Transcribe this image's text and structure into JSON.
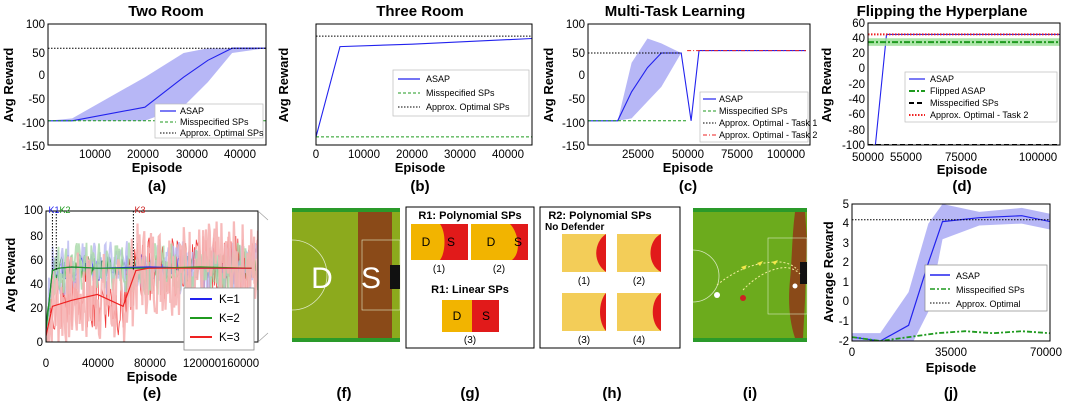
{
  "colors": {
    "blue": "#2222ee",
    "blue_fill": "#aaaaf5",
    "green": "#1f9a1f",
    "red": "#ee2222",
    "red_fill": "#f6b3b3",
    "black": "#000000",
    "pitch_green": "#8caa1d",
    "defender_brown": "#8a4a18",
    "shooter_yellow": "#f0c53a",
    "region_red": "#e11a1a",
    "region_orange": "#f2b400"
  },
  "subplots": {
    "a": {
      "title": "Two Room",
      "caption": "(a)",
      "xlabel": "Episode",
      "ylabel": "Avg Reward",
      "x_ticks": [
        "10000",
        "20000",
        "30000",
        "40000"
      ],
      "y_ticks": [
        "-150",
        "-100",
        "-50",
        "0",
        "50",
        "100"
      ],
      "legend": [
        "ASAP",
        "Misspecified SPs",
        "Approx. Optimal SPs"
      ]
    },
    "b": {
      "title": "Three Room",
      "caption": "(b)",
      "xlabel": "Episode",
      "ylabel": "Avg Reward",
      "x_ticks": [
        "0",
        "10000",
        "20000",
        "30000",
        "40000"
      ],
      "legend": [
        "ASAP",
        "Misspecified SPs",
        "Approx. Optimal SPs"
      ]
    },
    "c": {
      "title": "Multi-Task Learning",
      "caption": "(c)",
      "xlabel": "Episode",
      "ylabel": "Avg Reward",
      "x_ticks": [
        "25000",
        "50000",
        "75000",
        "100000"
      ],
      "y_ticks": [
        "-150",
        "-100",
        "-50",
        "0",
        "50",
        "100"
      ],
      "legend": [
        "ASAP",
        "Misspecified SPs",
        "Approx. Optimal - Task 1",
        "Approx. Optimal - Task 2"
      ]
    },
    "d": {
      "title": "Flipping the Hyperplane",
      "caption": "(d)",
      "xlabel": "Episode",
      "ylabel": "Avg Reward",
      "x_ticks": [
        "50000",
        "55000",
        "75000",
        "100000"
      ],
      "y_ticks": [
        "-100",
        "-80",
        "-60",
        "-40",
        "-20",
        "0",
        "20",
        "40",
        "60"
      ],
      "legend": [
        "ASAP",
        "Flipped ASAP",
        "Misspecified SPs",
        "Approx. Optimal - Task 2"
      ]
    },
    "e": {
      "caption": "(e)",
      "xlabel": "Episode",
      "ylabel": "Avg Reward",
      "x_ticks": [
        "0",
        "40000",
        "80000",
        "120000",
        "160000"
      ],
      "y_ticks": [
        "0",
        "20",
        "40",
        "60",
        "80",
        "100"
      ],
      "markers": [
        "K1",
        "K2",
        "K3"
      ],
      "legend": [
        "K=1",
        "K=2",
        "K=3"
      ]
    },
    "f": {
      "caption": "(f)",
      "defender_label": "D",
      "shooter_label": "S"
    },
    "g": {
      "caption": "(g)",
      "heading_poly": "R1: Polynomial SPs",
      "heading_lin": "R1: Linear SPs",
      "panel_labels": [
        "(1)",
        "(2)",
        "(3)"
      ],
      "region_d": "D",
      "region_s": "S"
    },
    "h": {
      "caption": "(h)",
      "heading": "R2: Polynomial SPs",
      "subheading": "No Defender",
      "panel_labels": [
        "(1)",
        "(2)",
        "(3)",
        "(4)"
      ]
    },
    "i": {
      "caption": "(i)"
    },
    "j": {
      "caption": "(j)",
      "xlabel": "Episode",
      "ylabel": "Average Reward",
      "x_ticks": [
        "0",
        "35000",
        "70000"
      ],
      "y_ticks": [
        "-2",
        "-1",
        "0",
        "1",
        "2",
        "3",
        "4",
        "5"
      ],
      "legend": [
        "ASAP",
        "Misspecified SPs",
        "Approx. Optimal"
      ]
    }
  },
  "chart_data": [
    {
      "id": "a",
      "type": "line",
      "title": "Two Room",
      "xlabel": "Episode",
      "ylabel": "Avg Reward",
      "xlim": [
        0,
        45000
      ],
      "ylim": [
        -150,
        100
      ],
      "series": [
        {
          "name": "ASAP",
          "x": [
            0,
            5000,
            20000,
            28000,
            33000,
            38000,
            45000
          ],
          "y": [
            -100,
            -100,
            -72,
            -10,
            25,
            50,
            50
          ],
          "band_upper": [
            -100,
            -95,
            -10,
            40,
            50,
            50,
            50
          ],
          "band_lower": [
            -100,
            -100,
            -100,
            -70,
            -20,
            40,
            50
          ]
        },
        {
          "name": "Misspecified SPs",
          "x": [
            0,
            45000
          ],
          "y": [
            -100,
            -100
          ]
        },
        {
          "name": "Approx. Optimal SPs",
          "x": [
            0,
            45000
          ],
          "y": [
            50,
            50
          ]
        }
      ]
    },
    {
      "id": "b",
      "type": "line",
      "title": "Three Room",
      "xlabel": "Episode",
      "ylabel": "Avg Reward",
      "xlim": [
        0,
        45000
      ],
      "ylim": [
        -110,
        40
      ],
      "series": [
        {
          "name": "ASAP",
          "x": [
            0,
            5000,
            20000,
            45000
          ],
          "y": [
            -100,
            12,
            15,
            22
          ]
        },
        {
          "name": "Misspecified SPs",
          "x": [
            0,
            45000
          ],
          "y": [
            -100,
            -100
          ]
        },
        {
          "name": "Approx. Optimal SPs",
          "x": [
            0,
            45000
          ],
          "y": [
            25,
            25
          ]
        }
      ]
    },
    {
      "id": "c",
      "type": "line",
      "title": "Multi-Task Learning",
      "xlabel": "Episode",
      "ylabel": "Avg Reward",
      "xlim": [
        0,
        112000
      ],
      "ylim": [
        -150,
        100
      ],
      "series": [
        {
          "name": "ASAP",
          "x": [
            0,
            15000,
            22000,
            30000,
            37000,
            47000,
            52000,
            56000,
            110000
          ],
          "y": [
            -100,
            -100,
            -40,
            10,
            40,
            40,
            -100,
            45,
            45
          ],
          "band_upper": [
            -100,
            -100,
            20,
            70,
            60,
            40,
            -100,
            45,
            45
          ],
          "band_lower": [
            -100,
            -100,
            -95,
            -60,
            -30,
            40,
            -100,
            45,
            45
          ]
        },
        {
          "name": "Misspecified SPs",
          "x": [
            0,
            50000
          ],
          "y": [
            -100,
            -100
          ]
        },
        {
          "name": "Approx. Optimal - Task 1",
          "x": [
            0,
            47000
          ],
          "y": [
            40,
            40
          ]
        },
        {
          "name": "Approx. Optimal - Task 2",
          "x": [
            50000,
            110000
          ],
          "y": [
            45,
            45
          ]
        }
      ]
    },
    {
      "id": "d",
      "type": "line",
      "title": "Flipping the Hyperplane",
      "xlabel": "Episode",
      "ylabel": "Avg Reward",
      "xlim": [
        50000,
        102000
      ],
      "ylim": [
        -100,
        60
      ],
      "series": [
        {
          "name": "ASAP",
          "x": [
            50000,
            52000,
            55000,
            102000
          ],
          "y": [
            -100,
            -100,
            45,
            45
          ]
        },
        {
          "name": "Flipped ASAP",
          "x": [
            50000,
            102000
          ],
          "y": [
            35,
            35
          ],
          "band_upper": [
            40,
            40
          ],
          "band_lower": [
            30,
            30
          ]
        },
        {
          "name": "Misspecified SPs",
          "x": [
            50000,
            102000
          ],
          "y": [
            -100,
            -100
          ]
        },
        {
          "name": "Approx. Optimal - Task 2",
          "x": [
            50000,
            102000
          ],
          "y": [
            45,
            45
          ]
        }
      ]
    },
    {
      "id": "e",
      "type": "line",
      "xlabel": "Episode",
      "ylabel": "Avg Reward",
      "xlim": [
        0,
        165000
      ],
      "ylim": [
        0,
        110
      ],
      "markers": [
        {
          "label": "K1",
          "x": 5000
        },
        {
          "label": "K2",
          "x": 8000
        },
        {
          "label": "K3",
          "x": 68000
        }
      ],
      "series": [
        {
          "name": "K=1",
          "x": [
            0,
            5000,
            10000,
            20000,
            40000,
            80000,
            120000,
            160000
          ],
          "y": [
            10,
            60,
            62,
            63,
            62,
            63,
            62,
            62
          ]
        },
        {
          "name": "K=2",
          "x": [
            0,
            5000,
            10000,
            20000,
            40000,
            80000,
            120000,
            160000
          ],
          "y": [
            10,
            60,
            62,
            63,
            62,
            62,
            63,
            62
          ]
        },
        {
          "name": "K=3",
          "x": [
            0,
            5000,
            20000,
            40000,
            60000,
            70000,
            80000,
            120000,
            160000
          ],
          "y": [
            5,
            30,
            35,
            40,
            30,
            60,
            62,
            62,
            62
          ]
        }
      ]
    },
    {
      "id": "j",
      "type": "line",
      "xlabel": "Episode",
      "ylabel": "Average Reward",
      "xlim": [
        0,
        70000
      ],
      "ylim": [
        -2,
        5
      ],
      "series": [
        {
          "name": "ASAP",
          "x": [
            0,
            10000,
            20000,
            27000,
            32000,
            45000,
            60000,
            70000
          ],
          "y": [
            -1.8,
            -2.0,
            -1.2,
            2.0,
            4.1,
            4.3,
            4.4,
            4.1
          ],
          "band_upper": [
            -1.6,
            -1.6,
            0.5,
            4.0,
            5.0,
            4.6,
            4.8,
            4.5
          ],
          "band_lower": [
            -2.0,
            -2.5,
            -2.5,
            -0.5,
            3.2,
            3.9,
            4.0,
            3.7
          ]
        },
        {
          "name": "Misspecified SPs",
          "x": [
            0,
            10000,
            20000,
            30000,
            40000,
            50000,
            60000,
            70000
          ],
          "y": [
            -1.8,
            -2.0,
            -1.8,
            -1.6,
            -1.5,
            -1.6,
            -1.5,
            -1.6
          ]
        },
        {
          "name": "Approx. Optimal",
          "x": [
            0,
            70000
          ],
          "y": [
            4.2,
            4.2
          ]
        }
      ]
    }
  ]
}
